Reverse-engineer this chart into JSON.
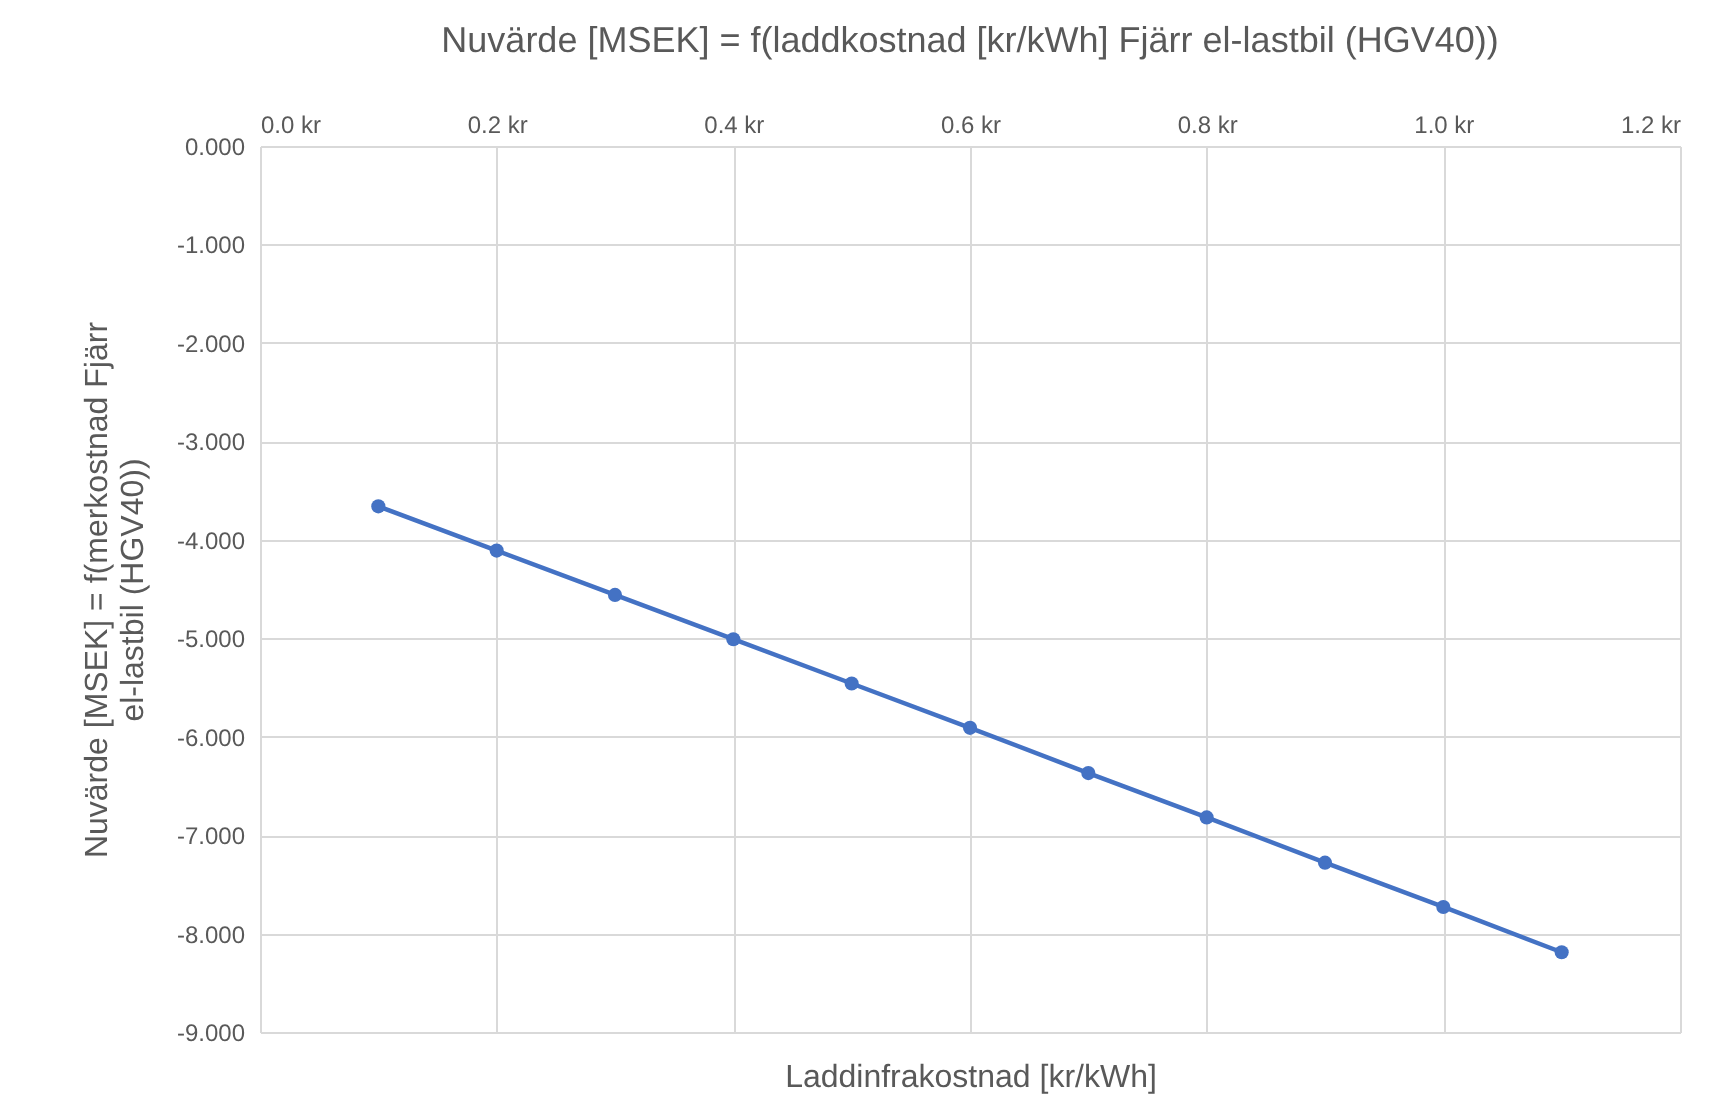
{
  "chart_data": {
    "type": "line",
    "title": "Nuvärde [MSEK] = f(laddkostnad [kr/kWh] Fjärr el-lastbil (HGV40))",
    "xlabel": "Laddinfrakostnad [kr/kWh]",
    "ylabel": "Nuvärde [MSEK] = f(merkostnad Fjärr el-lastbil (HGV40))",
    "x": [
      0.1,
      0.2,
      0.3,
      0.4,
      0.5,
      0.6,
      0.7,
      0.8,
      0.9,
      1.0,
      1.1
    ],
    "series": [
      {
        "color": "#4472c4",
        "values": [
          -3.66,
          -4.11,
          -4.56,
          -5.01,
          -5.46,
          -5.91,
          -6.37,
          -6.82,
          -7.28,
          -7.73,
          -8.19
        ]
      }
    ],
    "xlim": [
      0,
      1.2
    ],
    "xticks": [
      {
        "value": 0,
        "label": "0.0 kr"
      },
      {
        "value": 0.2,
        "label": "0.2 kr"
      },
      {
        "value": 0.4,
        "label": "0.4 kr"
      },
      {
        "value": 0.6,
        "label": "0.6 kr"
      },
      {
        "value": 0.8,
        "label": "0.8 kr"
      },
      {
        "value": 1.0,
        "label": "1.0 kr"
      },
      {
        "value": 1.2,
        "label": "1.2 kr"
      }
    ],
    "ylim": [
      -9,
      0
    ],
    "yticks": [
      {
        "value": 0,
        "label": "0.000"
      },
      {
        "value": -1,
        "label": "-1.000"
      },
      {
        "value": -2,
        "label": "-2.000"
      },
      {
        "value": -3,
        "label": "-3.000"
      },
      {
        "value": -4,
        "label": "-4.000"
      },
      {
        "value": -5,
        "label": "-5.000"
      },
      {
        "value": -6,
        "label": "-6.000"
      },
      {
        "value": -7,
        "label": "-7.000"
      },
      {
        "value": -8,
        "label": "-8.000"
      },
      {
        "value": -9,
        "label": "-9.000"
      }
    ],
    "grid": true,
    "marker": "circle",
    "line_style": "solid",
    "legend": false
  }
}
